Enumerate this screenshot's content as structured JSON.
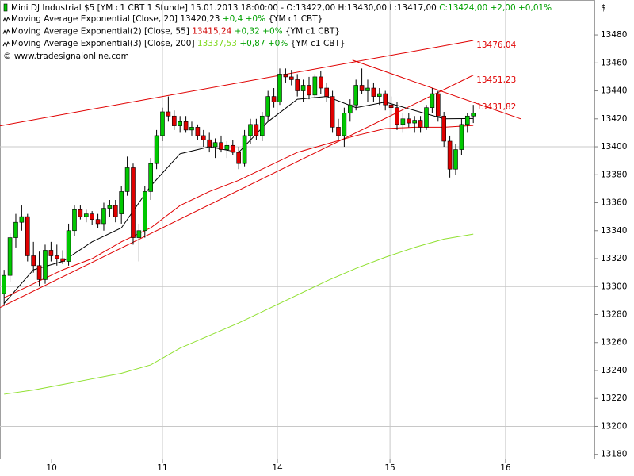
{
  "chart_data": {
    "type": "candlestick",
    "header": {
      "name": "Mini DJ Industrial $5 [YM c1 CBT  1 Stunde] 15.01.2013 18:00:00 - O:13422,00 H:13430,00 L:13417,00",
      "change": "C:13424,00 +2,00 +0,01%"
    },
    "copyright": "© www.tradesignalonline.com",
    "currency": "$",
    "ohlc": {
      "up_color": "#00c800",
      "down_color": "#e00000",
      "open": [
        13295,
        13308,
        13335,
        13346,
        13350,
        13322,
        13315,
        13305,
        13326,
        13322,
        13320,
        13318,
        13340,
        13355,
        13350,
        13352,
        13348,
        13345,
        13356,
        13358,
        13352,
        13368,
        13385,
        13335,
        13340,
        13368,
        13388,
        13408,
        13425,
        13422,
        13415,
        13418,
        13412,
        13414,
        13408,
        13405,
        13400,
        13403,
        13398,
        13401,
        13396,
        13388,
        13408,
        13416,
        13408,
        13422,
        13436,
        13432,
        13452,
        13450,
        13448,
        13440,
        13444,
        13437,
        13450,
        13442,
        13436,
        13414,
        13408,
        13424,
        13430,
        13444,
        13440,
        13442,
        13436,
        13438,
        13430,
        13428,
        13416,
        13420,
        13417,
        13419,
        13414,
        13428,
        13438,
        13422,
        13404,
        13384,
        13398,
        13416,
        13422
      ],
      "high": [
        13312,
        13338,
        13352,
        13358,
        13352,
        13332,
        13325,
        13330,
        13332,
        13330,
        13326,
        13345,
        13358,
        13358,
        13355,
        13354,
        13352,
        13360,
        13362,
        13362,
        13372,
        13393,
        13388,
        13345,
        13372,
        13392,
        13412,
        13428,
        13436,
        13426,
        13422,
        13422,
        13418,
        13416,
        13412,
        13410,
        13406,
        13408,
        13404,
        13405,
        13400,
        13412,
        13420,
        13420,
        13425,
        13440,
        13442,
        13456,
        13456,
        13455,
        13452,
        13448,
        13450,
        13452,
        13454,
        13446,
        13440,
        13420,
        13428,
        13434,
        13448,
        13456,
        13448,
        13446,
        13442,
        13440,
        13436,
        13432,
        13424,
        13424,
        13422,
        13422,
        13430,
        13442,
        13440,
        13425,
        13408,
        13402,
        13420,
        13424,
        13430
      ],
      "low": [
        13287,
        13303,
        13328,
        13340,
        13318,
        13310,
        13300,
        13302,
        13318,
        13315,
        13316,
        13315,
        13336,
        13348,
        13346,
        13344,
        13342,
        13340,
        13350,
        13346,
        13345,
        13365,
        13330,
        13318,
        13335,
        13362,
        13384,
        13404,
        13418,
        13412,
        13410,
        13410,
        13408,
        13405,
        13400,
        13396,
        13392,
        13396,
        13392,
        13394,
        13384,
        13386,
        13402,
        13405,
        13404,
        13418,
        13428,
        13430,
        13446,
        13444,
        13436,
        13432,
        13434,
        13435,
        13438,
        13432,
        13410,
        13405,
        13400,
        13418,
        13426,
        13438,
        13432,
        13432,
        13430,
        13426,
        13422,
        13412,
        13410,
        13414,
        13410,
        13410,
        13412,
        13424,
        13418,
        13400,
        13378,
        13380,
        13394,
        13410,
        13417
      ],
      "close": [
        13308,
        13335,
        13346,
        13350,
        13322,
        13315,
        13305,
        13326,
        13322,
        13320,
        13318,
        13340,
        13355,
        13350,
        13352,
        13348,
        13345,
        13356,
        13358,
        13350,
        13368,
        13385,
        13335,
        13340,
        13368,
        13388,
        13408,
        13425,
        13422,
        13415,
        13418,
        13412,
        13414,
        13408,
        13405,
        13400,
        13403,
        13398,
        13401,
        13396,
        13388,
        13408,
        13416,
        13408,
        13422,
        13436,
        13432,
        13452,
        13450,
        13448,
        13440,
        13444,
        13437,
        13450,
        13442,
        13436,
        13414,
        13408,
        13424,
        13430,
        13444,
        13440,
        13442,
        13436,
        13438,
        13430,
        13428,
        13416,
        13420,
        13417,
        13419,
        13414,
        13428,
        13438,
        13422,
        13404,
        13384,
        13398,
        13416,
        13422,
        13424
      ]
    },
    "series": [
      {
        "name": "Moving Average Exponential [Close, 20]",
        "last_label": "13420,23",
        "label_color": "#000000",
        "change": "+0,4 +0%",
        "source": "{YM c1 CBT}",
        "color": "#000000",
        "x": [
          0,
          5,
          10,
          15,
          20,
          25,
          30,
          35,
          40,
          45,
          50,
          55,
          60,
          65,
          70,
          75,
          80
        ],
        "values": [
          13288,
          13312,
          13318,
          13332,
          13342,
          13372,
          13395,
          13400,
          13396,
          13418,
          13434,
          13436,
          13428,
          13432,
          13426,
          13420,
          13420.23
        ]
      },
      {
        "name": "Moving Average Exponential(2) [Close, 55]",
        "last_label": "13415,24",
        "label_color": "#d00000",
        "change": "+0,32 +0%",
        "source": "{YM c1 CBT}",
        "color": "#e00000",
        "x": [
          0,
          5,
          10,
          15,
          20,
          25,
          30,
          35,
          40,
          45,
          50,
          55,
          60,
          65,
          70,
          75,
          80
        ],
        "values": [
          13292,
          13302,
          13312,
          13320,
          13332,
          13342,
          13358,
          13368,
          13376,
          13386,
          13396,
          13402,
          13408,
          13413,
          13414,
          13414,
          13415.24
        ]
      },
      {
        "name": "Moving Average Exponential(3) [Close, 200]",
        "last_label": "13337,53",
        "label_color": "#80d820",
        "change": "+0,87 +0%",
        "source": "{YM c1 CBT}",
        "color": "#90e030",
        "x": [
          0,
          5,
          10,
          15,
          20,
          25,
          30,
          35,
          40,
          45,
          50,
          55,
          60,
          65,
          70,
          75,
          80
        ],
        "values": [
          13223,
          13226,
          13230,
          13234,
          13238,
          13244,
          13256,
          13265,
          13274,
          13284,
          13294,
          13304,
          13313,
          13321,
          13328,
          13334,
          13337.53
        ]
      }
    ],
    "change_color": "#00a000",
    "trendlines": [
      {
        "color": "#e00000",
        "x": [
          -0.7,
          80
        ],
        "values": [
          13415,
          13476.04
        ],
        "label": "13476,04"
      },
      {
        "color": "#e00000",
        "x": [
          -0.7,
          80
        ],
        "values": [
          13285,
          13451.23
        ],
        "label": "13451,23"
      },
      {
        "color": "#e00000",
        "x": [
          59.4,
          80,
          88.1
        ],
        "values": [
          13462,
          13431.82,
          13420
        ],
        "label": "13431,82"
      }
    ],
    "xlim": [
      -0.7,
      100.65
    ],
    "xticks": [
      {
        "value": 8.1,
        "label": "10"
      },
      {
        "value": 27.0,
        "label": "11"
      },
      {
        "value": 46.6,
        "label": "14"
      },
      {
        "value": 65.8,
        "label": "15"
      },
      {
        "value": 85.5,
        "label": "16"
      }
    ],
    "xgrid": [
      27.0,
      46.6,
      65.8,
      85.5
    ],
    "ylim": [
      13177,
      13505
    ],
    "yticks": [
      13180,
      13200,
      13220,
      13240,
      13260,
      13280,
      13300,
      13320,
      13340,
      13360,
      13380,
      13400,
      13420,
      13440,
      13460,
      13480
    ],
    "ygrid": [
      13200,
      13300,
      13400
    ]
  }
}
